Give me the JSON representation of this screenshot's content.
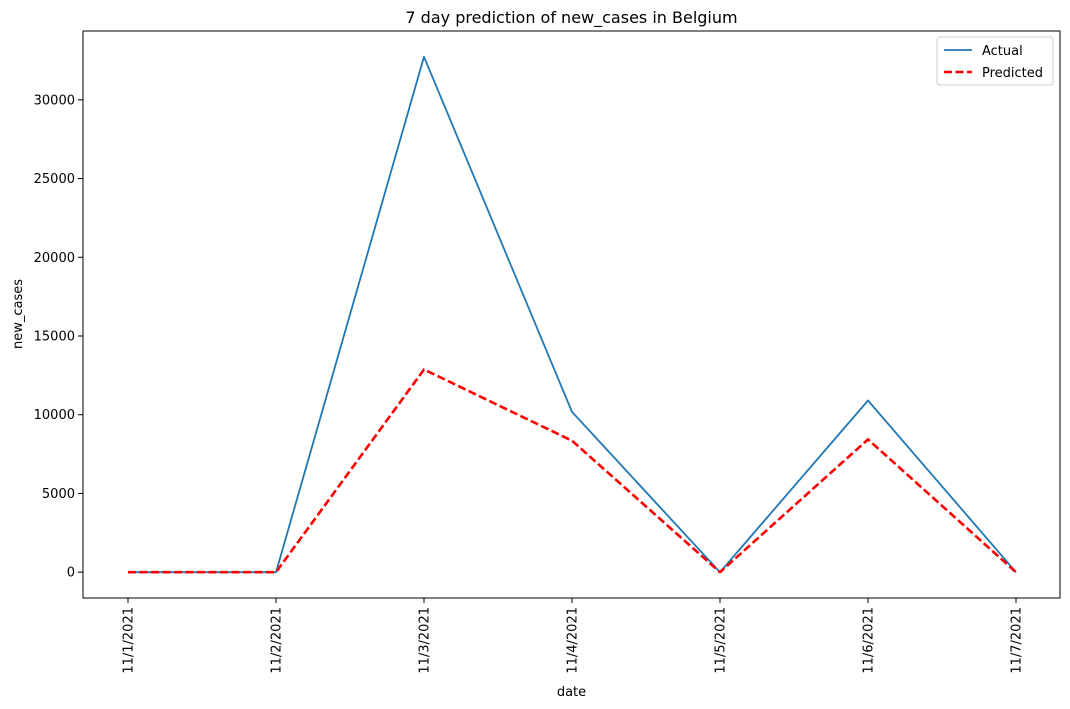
{
  "chart_data": {
    "type": "line",
    "title": "7 day prediction of new_cases in Belgium",
    "xlabel": "date",
    "ylabel": "new_cases",
    "categories": [
      "11/1/2021",
      "11/2/2021",
      "11/3/2021",
      "11/4/2021",
      "11/5/2021",
      "11/6/2021",
      "11/7/2021"
    ],
    "series": [
      {
        "name": "Actual",
        "values": [
          0,
          0,
          32730,
          10180,
          0,
          10900,
          0
        ],
        "color": "#1f77b4",
        "style": "solid"
      },
      {
        "name": "Predicted",
        "values": [
          0,
          0,
          12870,
          8350,
          0,
          8430,
          0
        ],
        "color": "#ff0000",
        "style": "dashed"
      }
    ],
    "ylim": [
      -1640,
      34370
    ],
    "yticks": [
      0,
      5000,
      10000,
      15000,
      20000,
      25000,
      30000
    ],
    "grid": false,
    "legend": "top-right"
  }
}
